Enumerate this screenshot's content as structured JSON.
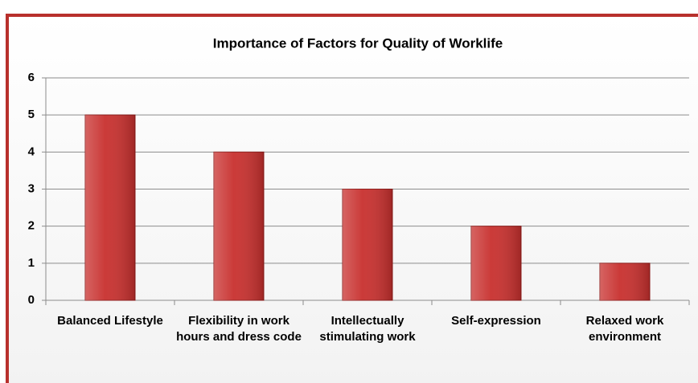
{
  "chart_data": {
    "type": "bar",
    "title": "Importance of Factors for Quality of Worklife",
    "categories": [
      "Balanced Lifestyle",
      "Flexibility in work hours and dress code",
      "Intellectually stimulating work",
      "Self-expression",
      "Relaxed work environment"
    ],
    "values": [
      5,
      4,
      3,
      2,
      1
    ],
    "color": "#c8302e",
    "ylim": [
      0,
      6
    ],
    "yticks": [
      0,
      1,
      2,
      3,
      4,
      5,
      6
    ],
    "grid": true
  }
}
